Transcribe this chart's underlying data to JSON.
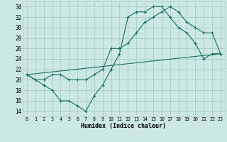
{
  "xlabel": "Humidex (Indice chaleur)",
  "bg_color": "#cce8e4",
  "grid_color": "#aacccc",
  "line_color": "#1a6e60",
  "xlim": [
    -0.5,
    23.5
  ],
  "ylim": [
    13,
    35
  ],
  "xticks": [
    0,
    1,
    2,
    3,
    4,
    5,
    6,
    7,
    8,
    9,
    10,
    11,
    12,
    13,
    14,
    15,
    16,
    17,
    18,
    19,
    20,
    21,
    22,
    23
  ],
  "yticks": [
    14,
    16,
    18,
    20,
    22,
    24,
    26,
    28,
    30,
    32,
    34
  ],
  "curve1_x": [
    0,
    1,
    2,
    3,
    4,
    5,
    6,
    7,
    8,
    9,
    10,
    11,
    12,
    13,
    14,
    15,
    16,
    17,
    18,
    19,
    20,
    21,
    22,
    23
  ],
  "curve1_y": [
    21,
    20,
    19,
    18,
    16,
    16,
    15,
    14,
    17,
    19,
    22,
    25,
    32,
    33,
    33,
    34,
    34,
    32,
    30,
    29,
    27,
    24,
    25,
    25
  ],
  "curve2_x": [
    0,
    1,
    2,
    3,
    4,
    5,
    6,
    7,
    8,
    9,
    10,
    11,
    12,
    13,
    14,
    15,
    16,
    17,
    18,
    19,
    20,
    21,
    22,
    23
  ],
  "curve2_y": [
    21,
    20,
    20,
    21,
    21,
    20,
    20,
    20,
    21,
    22,
    26,
    26,
    27,
    29,
    31,
    32,
    33,
    34,
    33,
    31,
    30,
    29,
    29,
    25
  ],
  "curve3_x": [
    0,
    23
  ],
  "curve3_y": [
    21,
    25
  ]
}
